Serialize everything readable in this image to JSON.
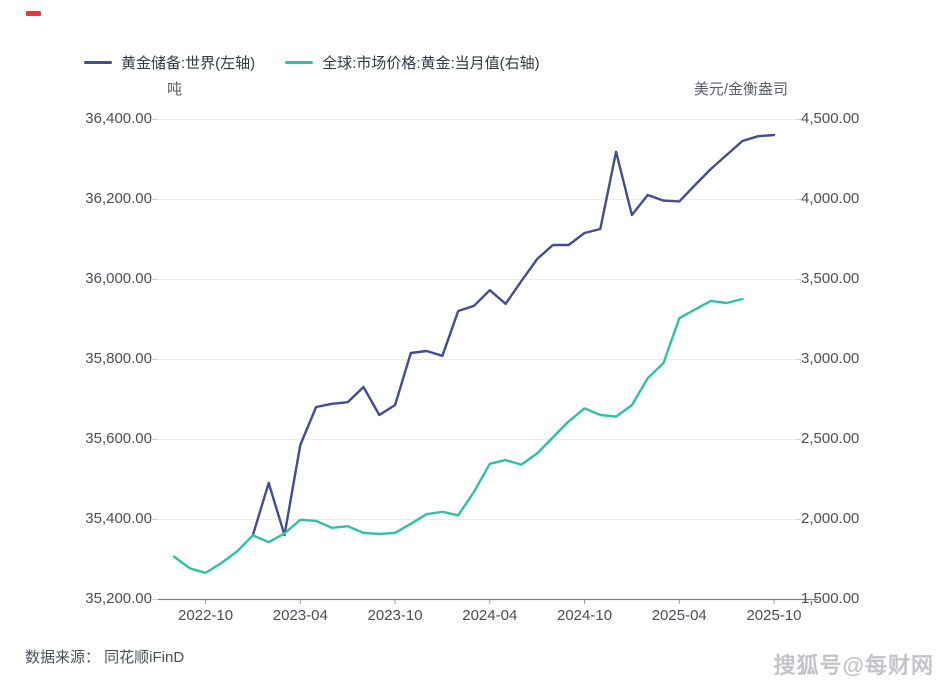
{
  "footer": {
    "source": "数据来源： 同花顺iFinD",
    "watermark": "搜狐号@每财网"
  },
  "chart_data": {
    "type": "line",
    "x_tick_labels": [
      "2022-10",
      "2023-04",
      "2023-10",
      "2024-04",
      "2024-10",
      "2025-04",
      "2025-10"
    ],
    "x_tick_month_indices": [
      2,
      8,
      14,
      20,
      26,
      32,
      38
    ],
    "month_axis": {
      "start": "2022-08",
      "end": "2025-10",
      "months_total": 39
    },
    "grid": true,
    "legend_position": "top-left",
    "left_axis": {
      "unit": "吨",
      "min": 35200,
      "max": 36400,
      "tick_labels": [
        "36,400.00",
        "36,200.00",
        "36,000.00",
        "35,800.00",
        "35,600.00",
        "35,400.00",
        "35,200.00"
      ]
    },
    "right_axis": {
      "unit": "美元/金衡盎司",
      "min": 1500,
      "max": 4500,
      "tick_labels": [
        "4,500.00",
        "4,000.00",
        "3,500.00",
        "3,000.00",
        "2,500.00",
        "2,000.00",
        "1,500.00"
      ]
    },
    "series": [
      {
        "name": "黄金储备:世界(左轴)",
        "axis": "left",
        "color": "#414e93",
        "months": [
          "2023-01",
          "2023-02",
          "2023-03",
          "2023-04",
          "2023-05",
          "2023-06",
          "2023-07",
          "2023-08",
          "2023-09",
          "2023-10",
          "2023-11",
          "2023-12",
          "2024-01",
          "2024-02",
          "2024-03",
          "2024-04",
          "2024-05",
          "2024-06",
          "2024-07",
          "2024-08",
          "2024-09",
          "2024-10",
          "2024-11",
          "2024-12",
          "2025-01",
          "2025-02",
          "2025-03",
          "2025-04",
          "2025-05",
          "2025-06",
          "2025-07",
          "2025-08",
          "2025-09",
          "2025-10"
        ],
        "values": [
          35360,
          35490,
          35360,
          35585,
          35680,
          35688,
          35692,
          35730,
          35660,
          35685,
          35815,
          35820,
          35808,
          35920,
          35933,
          35972,
          35938,
          35995,
          36050,
          36085,
          36085,
          36115,
          36125,
          36318,
          36160,
          36210,
          36196,
          36194,
          36235,
          36275,
          36310,
          36345,
          36357,
          36360
        ]
      },
      {
        "name": "全球:市场价格:黄金:当月值(右轴)",
        "axis": "right",
        "color": "#2fc0a7",
        "months": [
          "2022-08",
          "2022-09",
          "2022-10",
          "2022-11",
          "2022-12",
          "2023-01",
          "2023-02",
          "2023-03",
          "2023-04",
          "2023-05",
          "2023-06",
          "2023-07",
          "2023-08",
          "2023-09",
          "2023-10",
          "2023-11",
          "2023-12",
          "2024-01",
          "2024-02",
          "2024-03",
          "2024-04",
          "2024-05",
          "2024-06",
          "2024-07",
          "2024-08",
          "2024-09",
          "2024-10",
          "2024-11",
          "2024-12",
          "2025-01",
          "2025-02",
          "2025-03",
          "2025-04",
          "2025-05",
          "2025-06",
          "2025-07",
          "2025-08"
        ],
        "values": [
          1765,
          1692,
          1663,
          1725,
          1798,
          1898,
          1855,
          1910,
          1995,
          1988,
          1945,
          1955,
          1913,
          1907,
          1913,
          1970,
          2030,
          2045,
          2023,
          2170,
          2345,
          2368,
          2340,
          2410,
          2510,
          2610,
          2692,
          2650,
          2640,
          2712,
          2880,
          2975,
          3255,
          3310,
          3363,
          3350,
          3375
        ]
      }
    ]
  }
}
